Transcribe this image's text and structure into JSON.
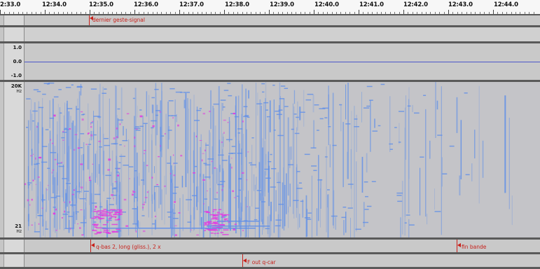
{
  "ruler": {
    "ticks": [
      "2:33.0",
      "12:34.0",
      "12:35.0",
      "12:36.0",
      "12:37.0",
      "12:38.0",
      "12:39.0",
      "12:40.0",
      "12:41.0",
      "12:42.0",
      "12:43.0",
      "12:44.0"
    ]
  },
  "label_track_top": {
    "label": "dernier geste-signal"
  },
  "waveform": {
    "axis": {
      "top": "1.0",
      "mid": "0.0",
      "bottom": "-1.0"
    },
    "line_color": "#4b56c8"
  },
  "spectrogram": {
    "axis": {
      "top_value": "20K",
      "top_unit": "Hz",
      "bottom_value": "21",
      "bottom_unit": "Hz"
    },
    "colors": {
      "bg": "#c4c4c8",
      "blue": "#5f8fe8",
      "magenta": "#e23ce0"
    }
  },
  "label_track_bottom": {
    "label_a": "q-bas 2, long (gliss.), 2 x",
    "label_b": "fin bande"
  },
  "label_track_last": {
    "label": "F out q-car"
  }
}
